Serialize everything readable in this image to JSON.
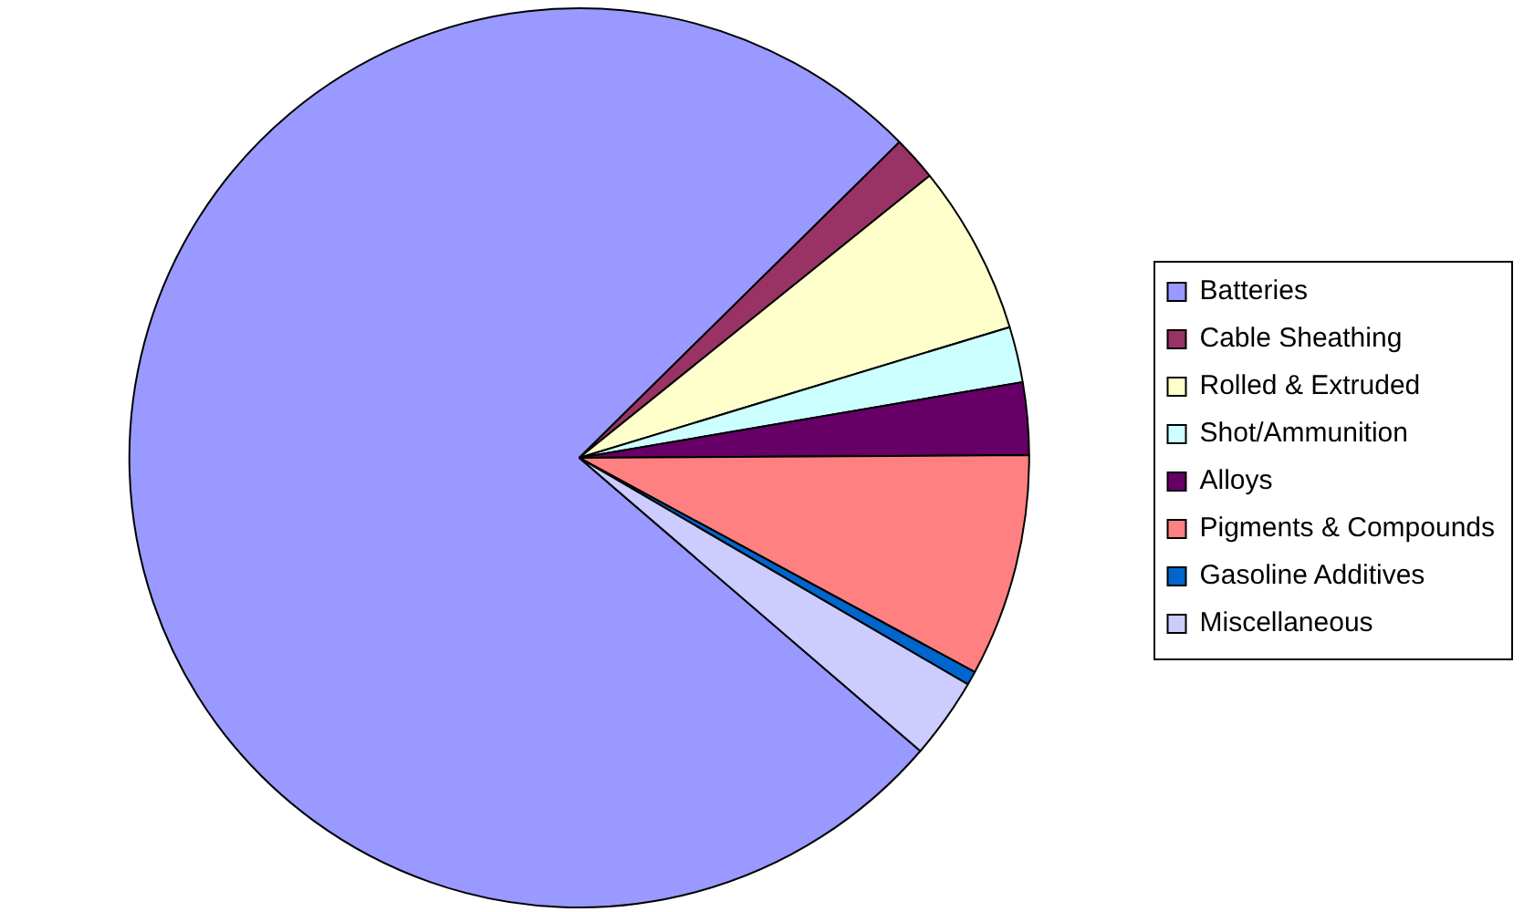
{
  "chart_data": {
    "type": "pie",
    "categories": [
      "Batteries",
      "Cable Sheathing",
      "Rolled & Extruded",
      "Shot/Ammunition",
      "Alloys",
      "Pigments & Compounds",
      "Gasoline Additives",
      "Miscellaneous"
    ],
    "values": [
      76.3,
      1.6,
      6.1,
      2.0,
      2.6,
      8.0,
      0.5,
      2.9
    ],
    "colors": [
      "#9999ff",
      "#993366",
      "#ffffcc",
      "#ccffff",
      "#660066",
      "#ff8080",
      "#0066cc",
      "#ccccff"
    ],
    "legend": "right"
  }
}
